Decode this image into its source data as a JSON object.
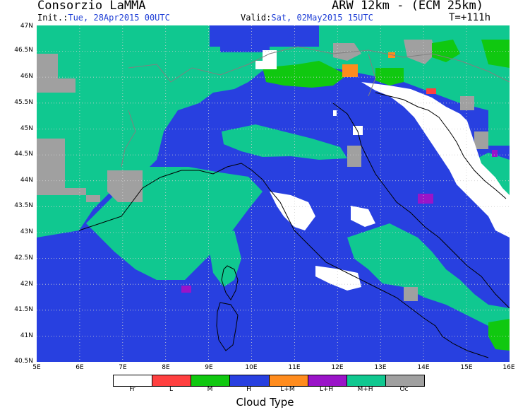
{
  "header": {
    "producer": "Consorzio LaMMA",
    "model": "ARW 12km - (ECM 25km)",
    "init_label": "Init.:",
    "init_value": "Tue, 28Apr2015 00UTC",
    "valid_label": "Valid:",
    "valid_value": "Sat, 02May2015 15UTC",
    "step": "T=+111h"
  },
  "axes": {
    "lat_labels": [
      "47N",
      "46.5N",
      "46N",
      "45.5N",
      "45N",
      "44.5N",
      "44N",
      "43.5N",
      "43N",
      "42.5N",
      "42N",
      "41.5N",
      "41N",
      "40.5N"
    ],
    "lon_labels": [
      "5E",
      "6E",
      "7E",
      "8E",
      "9E",
      "10E",
      "11E",
      "12E",
      "13E",
      "14E",
      "15E",
      "16E"
    ]
  },
  "legend": {
    "title": "Cloud Type",
    "items": [
      {
        "code": "Fr",
        "color": "#ffffff"
      },
      {
        "code": "L",
        "color": "#ff4040"
      },
      {
        "code": "M",
        "color": "#10c810"
      },
      {
        "code": "H",
        "color": "#2840e0"
      },
      {
        "code": "L+M",
        "color": "#ff8c1e"
      },
      {
        "code": "L+H",
        "color": "#9a14c8"
      },
      {
        "code": "M+H",
        "color": "#10c890"
      },
      {
        "code": "Oc",
        "color": "#a0a0a0"
      }
    ]
  }
}
